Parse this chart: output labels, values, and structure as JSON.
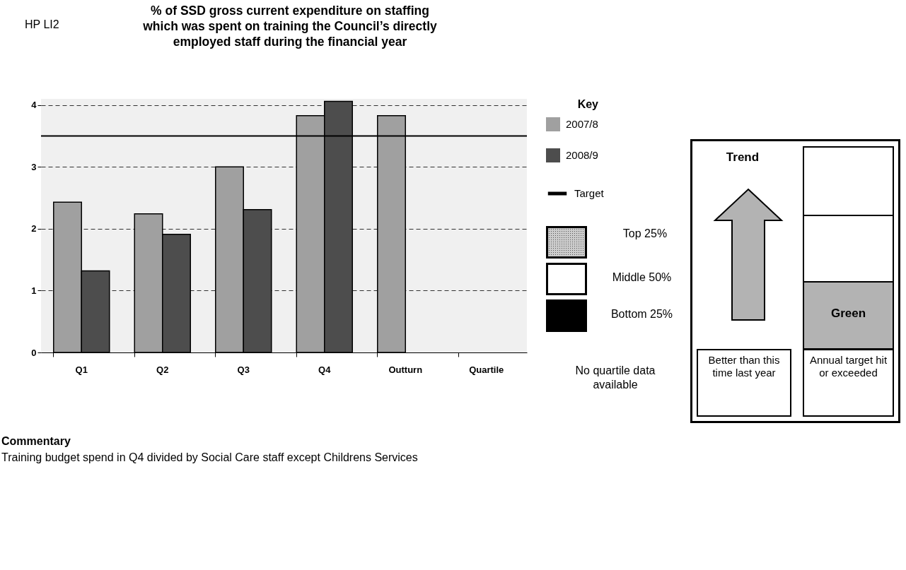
{
  "chart_data": {
    "type": "bar",
    "title": "% of SSD gross current expenditure on staffing which was spent on training the Council’s directly employed staff during the financial year",
    "categories": [
      "Q1",
      "Q2",
      "Q3",
      "Q4",
      "Outturn",
      "Quartile"
    ],
    "series": [
      {
        "name": "2007/8",
        "color": "#a0a0a0",
        "values": [
          2.43,
          2.24,
          3.0,
          3.83,
          3.83,
          null
        ]
      },
      {
        "name": "2008/9",
        "color": "#4d4d4d",
        "values": [
          1.32,
          1.91,
          2.31,
          4.06,
          null,
          null
        ]
      }
    ],
    "ylim": [
      0,
      4.1
    ],
    "yticks": [
      0,
      1,
      2,
      3,
      4
    ],
    "grid": "y",
    "legend": "right",
    "legend_title": "Key",
    "ref_lines": [
      {
        "axis": "y",
        "value": 3.5,
        "label": "Target",
        "color": "#000000"
      }
    ],
    "annotations": [
      "HP LI2",
      "Top 25%",
      "Middle 50%",
      "Bottom 25%",
      "No quartile data available",
      "Trend",
      "Green",
      "Better than this time last year",
      "Annual target hit or exceeded",
      "Commentary",
      "Training budget spend in Q4 divided by Social Care staff except Childrens Services"
    ]
  }
}
